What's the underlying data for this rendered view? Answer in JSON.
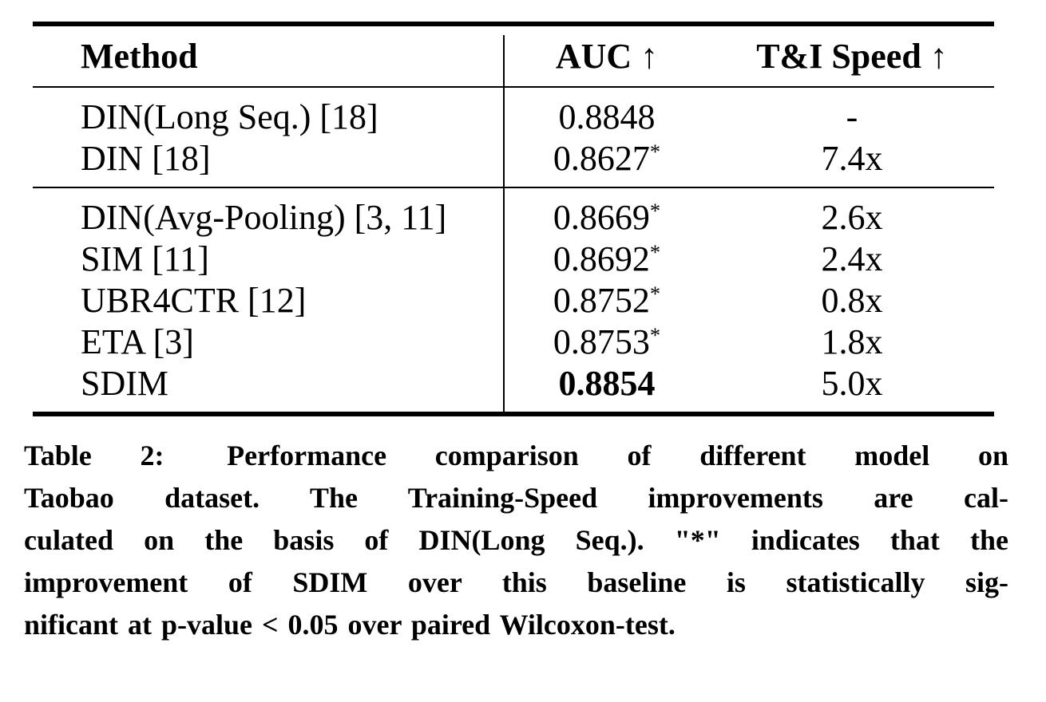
{
  "colors": {
    "text": "#000000",
    "background": "#ffffff",
    "rule": "#000000"
  },
  "table": {
    "columns": [
      {
        "label": "Method"
      },
      {
        "label": "AUC ↑"
      },
      {
        "label": "T&I Speed ↑"
      }
    ],
    "groups": [
      {
        "rows": [
          {
            "method": "DIN(Long Seq.) [18]",
            "auc": "0.8848",
            "star": "",
            "speed": "-"
          },
          {
            "method": "DIN [18]",
            "auc": "0.8627",
            "star": "*",
            "speed": "7.4x"
          }
        ]
      },
      {
        "rows": [
          {
            "method": "DIN(Avg-Pooling) [3, 11]",
            "auc": "0.8669",
            "star": "*",
            "speed": "2.6x"
          },
          {
            "method": "SIM [11]",
            "auc": "0.8692",
            "star": "*",
            "speed": "2.4x"
          },
          {
            "method": "UBR4CTR [12]",
            "auc": "0.8752",
            "star": "*",
            "speed": "0.8x"
          },
          {
            "method": "ETA [3]",
            "auc": "0.8753",
            "star": "*",
            "speed": "1.8x"
          },
          {
            "method": "SDIM",
            "auc": "0.8854",
            "star": "",
            "speed": "5.0x"
          }
        ]
      }
    ]
  },
  "caption": {
    "lines": [
      "Table 2:  Performance comparison of different model on",
      "Taobao dataset. The Training-Speed improvements are cal-",
      "culated on the basis of DIN(Long Seq.). \"*\" indicates that the",
      "improvement of SDIM over this baseline is statistically sig-",
      "nificant at p-value < 0.05 over paired Wilcoxon-test."
    ]
  }
}
